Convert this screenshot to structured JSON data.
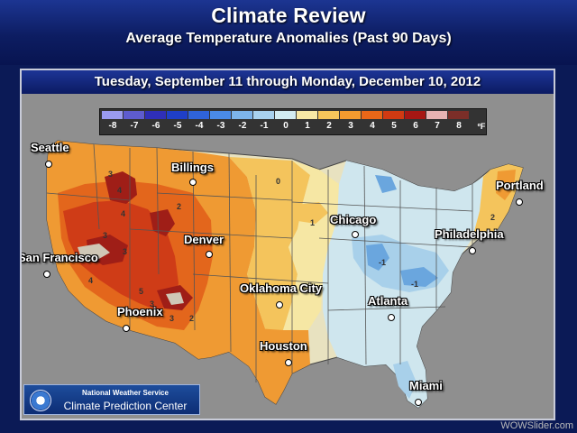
{
  "header": {
    "title": "Climate Review",
    "subtitle": "Average Temperature Anomalies (Past 90 Days)"
  },
  "date_range": "Tuesday, September 11 through Monday, December 10, 2012",
  "legend": {
    "unit": "ºF",
    "items": [
      {
        "label": "-8",
        "color": "#9a9bf0"
      },
      {
        "label": "-7",
        "color": "#5e5ccf"
      },
      {
        "label": "-6",
        "color": "#2f2fb8"
      },
      {
        "label": "-5",
        "color": "#1f3fc8"
      },
      {
        "label": "-4",
        "color": "#2f63d8"
      },
      {
        "label": "-3",
        "color": "#4a8ae6"
      },
      {
        "label": "-2",
        "color": "#7db4ea"
      },
      {
        "label": "-1",
        "color": "#a9d2ef"
      },
      {
        "label": "0",
        "color": "#d3ecf2"
      },
      {
        "label": "1",
        "color": "#f7e8a6"
      },
      {
        "label": "2",
        "color": "#f7c65b"
      },
      {
        "label": "3",
        "color": "#f49a2f"
      },
      {
        "label": "4",
        "color": "#e96718"
      },
      {
        "label": "5",
        "color": "#d13a12"
      },
      {
        "label": "6",
        "color": "#a71713"
      },
      {
        "label": "7",
        "color": "#e7b3b3"
      },
      {
        "label": "8",
        "color": "#7b2e28"
      }
    ]
  },
  "map": {
    "colors": {
      "ocean": "#8f8f8f",
      "land_neutral": "#e8e2c0",
      "cool_light": "#cfe6ee",
      "cool_mid": "#a8d0ea",
      "cool_dark": "#6aa6de",
      "warm_light": "#f6e7a4",
      "warm_mid": "#f4c45c",
      "warm_orange": "#ef9a33",
      "warm_red": "#e3661c",
      "hot": "#cf3c17",
      "hottest": "#9f1e17"
    },
    "cities": [
      {
        "name": "Seattle"
      },
      {
        "name": "Billings"
      },
      {
        "name": "Portland"
      },
      {
        "name": "Chicago"
      },
      {
        "name": "Denver"
      },
      {
        "name": "Philadelphia"
      },
      {
        "name": "San Francisco"
      },
      {
        "name": "Oklahoma City"
      },
      {
        "name": "Atlanta"
      },
      {
        "name": "Phoenix"
      },
      {
        "name": "Houston"
      },
      {
        "name": "Miami"
      }
    ],
    "contour_labels": [
      "4",
      "3",
      "4",
      "2",
      "3",
      "3",
      "4",
      "5",
      "3",
      "3",
      "2",
      "0",
      "-1",
      "2",
      "1",
      "-1"
    ]
  },
  "badge": {
    "line1": "National Weather Service",
    "line2": "Climate Prediction Center"
  },
  "watermark": "WOWSlider.com"
}
